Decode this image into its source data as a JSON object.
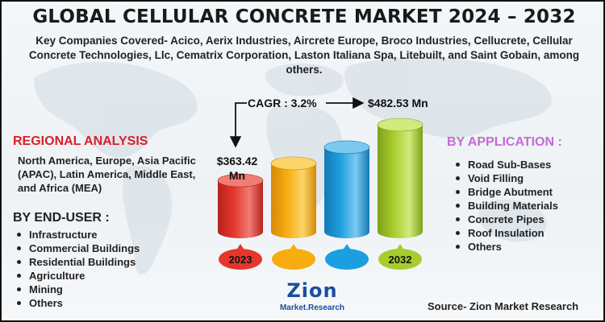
{
  "title": "GLOBAL CELLULAR CONCRETE MARKET 2024 – 2032",
  "subtitle": "Key Companies Covered- Acico, Aerix Industries, Aircrete Europe, Broco Industries, Cellucrete, Cellular Concrete Technologies, Llc, Cematrix Corporation, Laston Italiana Spa, Litebuilt, and Saint Gobain, among others.",
  "regional": {
    "heading": "REGIONAL ANALYSIS",
    "text": "North America, Europe, Asia Pacific (APAC), Latin America, Middle East, and Africa (MEA)"
  },
  "end_user": {
    "heading": "BY END-USER :",
    "items": [
      "Infrastructure",
      "Commercial Buildings",
      "Residential Buildings",
      "Agriculture",
      "Mining",
      "Others"
    ]
  },
  "application": {
    "heading": "BY APPLICATION :",
    "items": [
      "Road Sub-Bases",
      "Void Filling",
      "Bridge Abutment",
      "Building Materials",
      "Concrete Pipes",
      "Roof Insulation",
      "Others"
    ]
  },
  "chart_data": {
    "type": "bar",
    "title": "GLOBAL CELLULAR CONCRETE MARKET 2024 – 2032",
    "categories": [
      "2023",
      "",
      "",
      "2032"
    ],
    "relative_heights": [
      0.48,
      0.64,
      0.79,
      1.0
    ],
    "start_label": {
      "line1": "$363.42",
      "line2": "Mn"
    },
    "end_label": "$482.53 Mn",
    "cagr_label": "CAGR : 3.2%",
    "bar_colors": [
      "#e5362c",
      "#f7ad10",
      "#1c9fe0",
      "#a8cc2c"
    ],
    "bar_colors_dark": [
      "#b3241b",
      "#d48a06",
      "#1379b3",
      "#7ea11a"
    ],
    "bar_colors_top": [
      "#f07c74",
      "#fbd46a",
      "#7cc9f0",
      "#d2ea7c"
    ],
    "xlabel": "",
    "ylabel": ""
  },
  "logo": {
    "main": "Zion",
    "sub": "Market.Research"
  },
  "source": "Source- Zion Market Research"
}
